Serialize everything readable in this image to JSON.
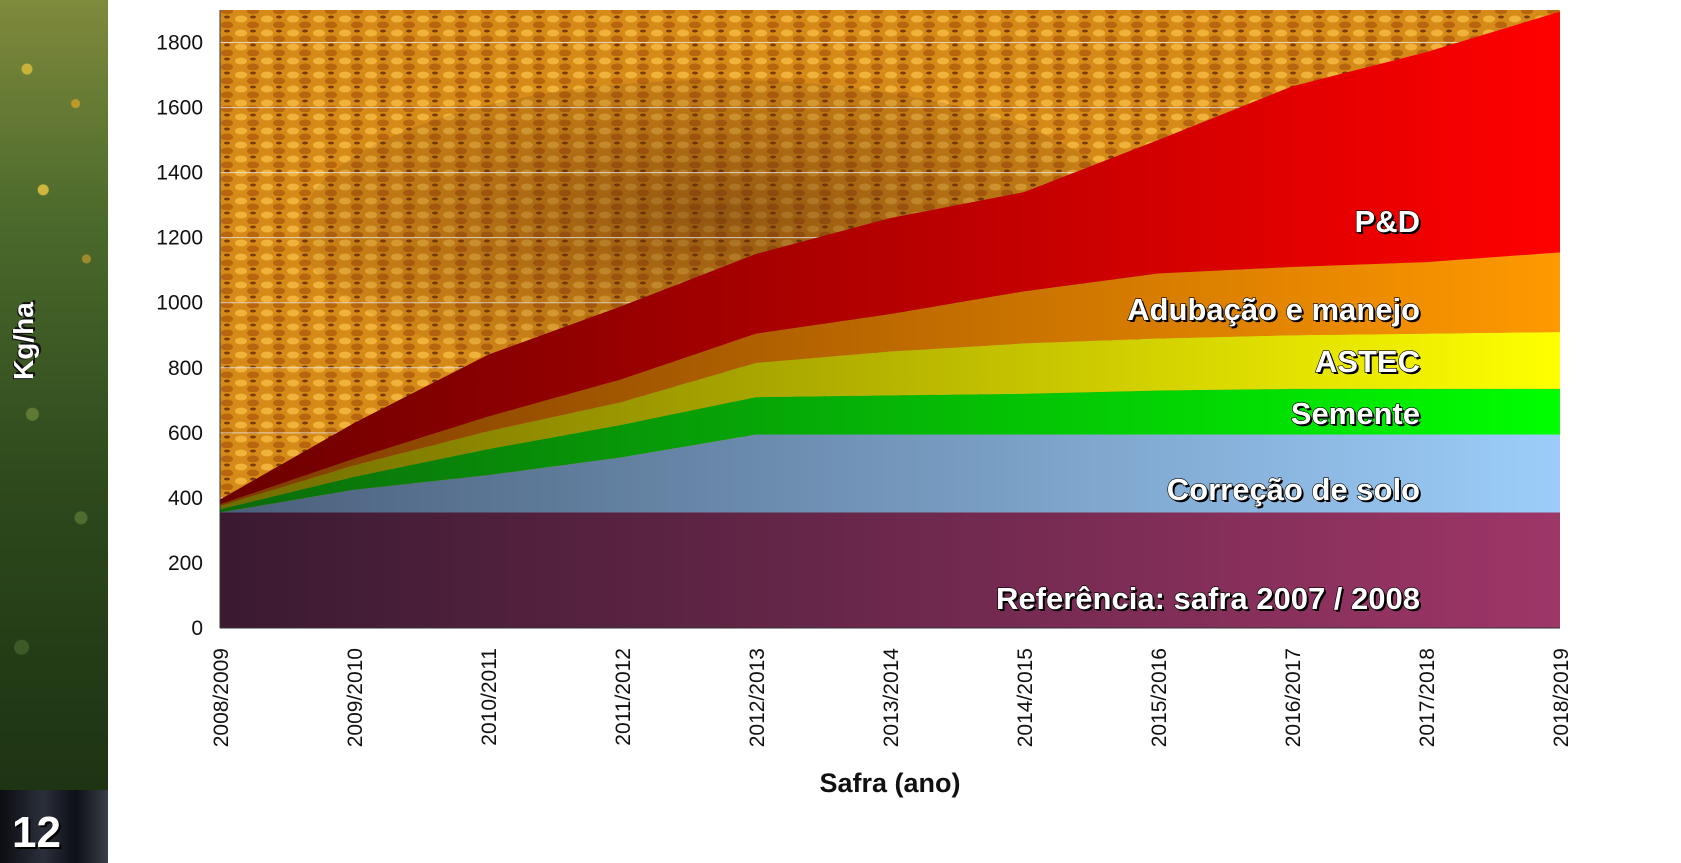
{
  "page": {
    "number": "12"
  },
  "colors": {
    "reference": [
      "#3a1a30",
      "#9e3668"
    ],
    "soil": [
      "#4a5f7a",
      "#9ccdfa"
    ],
    "seed": [
      "#0b6a0b",
      "#00ff00"
    ],
    "astec": [
      "#6f6a00",
      "#ffff00"
    ],
    "fertilizer": [
      "#7a3a00",
      "#ff9900"
    ],
    "rd": [
      "#6b0000",
      "#ff0000"
    ]
  },
  "chart_data": {
    "type": "area",
    "stacked": true,
    "title": "",
    "xlabel": "Safra (ano)",
    "ylabel": "Kg/ha",
    "ylim": [
      0,
      1900
    ],
    "yticks": [
      0,
      200,
      400,
      600,
      800,
      1000,
      1200,
      1400,
      1600,
      1800
    ],
    "grid": true,
    "categories": [
      "2008/2009",
      "2009/2010",
      "2010/2011",
      "2011/2012",
      "2012/2013",
      "2013/2014",
      "2014/2015",
      "2015/2016",
      "2016/2017",
      "2017/2018",
      "2018/2019"
    ],
    "series": [
      {
        "name": "Referência: safra 2007 / 2008",
        "values": [
          355,
          355,
          355,
          355,
          355,
          355,
          355,
          355,
          355,
          355,
          355
        ]
      },
      {
        "name": "Correção de solo",
        "values": [
          0,
          70,
          115,
          170,
          240,
          240,
          240,
          240,
          240,
          240,
          240
        ]
      },
      {
        "name": "Semente",
        "values": [
          10,
          40,
          80,
          100,
          115,
          120,
          125,
          135,
          140,
          140,
          140
        ]
      },
      {
        "name": "ASTEC",
        "values": [
          10,
          35,
          55,
          70,
          105,
          135,
          155,
          160,
          165,
          170,
          175
        ]
      },
      {
        "name": "Adubação e manejo",
        "values": [
          5,
          20,
          45,
          70,
          90,
          115,
          160,
          200,
          210,
          220,
          245
        ]
      },
      {
        "name": "P&D",
        "values": [
          15,
          110,
          190,
          225,
          245,
          295,
          305,
          410,
          555,
          645,
          740
        ]
      }
    ]
  }
}
